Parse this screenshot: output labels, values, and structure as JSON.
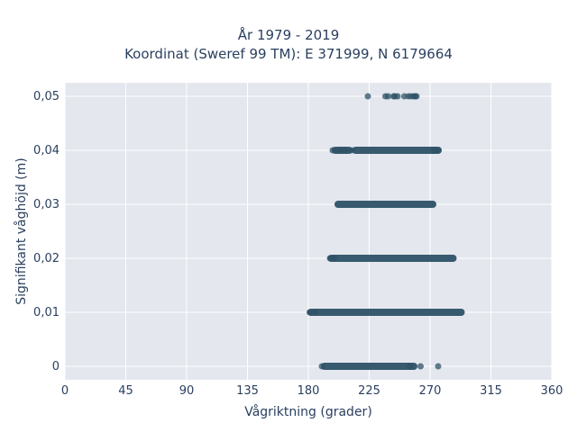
{
  "chart_data": {
    "type": "scatter",
    "title_line1": "År 1979 - 2019",
    "title_line2": "Koordinat (Sweref 99 TM): E 371999, N 6179664",
    "xlabel": "Vågriktning (grader)",
    "ylabel": "Signifikant våghöjd (m)",
    "xlim": [
      0,
      360
    ],
    "ylim": [
      -0.0025,
      0.0525
    ],
    "x_ticks": [
      0,
      45,
      90,
      135,
      180,
      225,
      270,
      315,
      360
    ],
    "x_tick_labels": [
      "0",
      "45",
      "90",
      "135",
      "180",
      "225",
      "270",
      "315",
      "360"
    ],
    "y_ticks": [
      0,
      0.01,
      0.02,
      0.03,
      0.04,
      0.05
    ],
    "y_tick_labels": [
      "0",
      "0,01",
      "0,02",
      "0,03",
      "0,04",
      "0,05"
    ],
    "grid": true,
    "marker_color": "#2e5266",
    "plot_bg": "#e5e7ef",
    "series": [
      {
        "y": 0.05,
        "points": [
          224,
          237,
          239,
          243,
          244,
          246,
          251,
          254,
          256,
          258,
          259,
          260
        ]
      },
      {
        "y": 0.04,
        "ranges": [
          [
            200,
            210
          ],
          [
            215,
            276
          ]
        ],
        "points": [
          198,
          203,
          207,
          212,
          273,
          276
        ]
      },
      {
        "y": 0.03,
        "ranges": [
          [
            202,
            272
          ]
        ],
        "points": []
      },
      {
        "y": 0.02,
        "ranges": [
          [
            197,
            287
          ]
        ],
        "points": [
          196,
          199
        ]
      },
      {
        "y": 0.01,
        "ranges": [
          [
            182,
            293
          ]
        ],
        "points": [
          181,
          185
        ]
      },
      {
        "y": 0,
        "ranges": [
          [
            192,
            258
          ]
        ],
        "points": [
          190,
          255,
          263,
          276
        ]
      }
    ]
  }
}
